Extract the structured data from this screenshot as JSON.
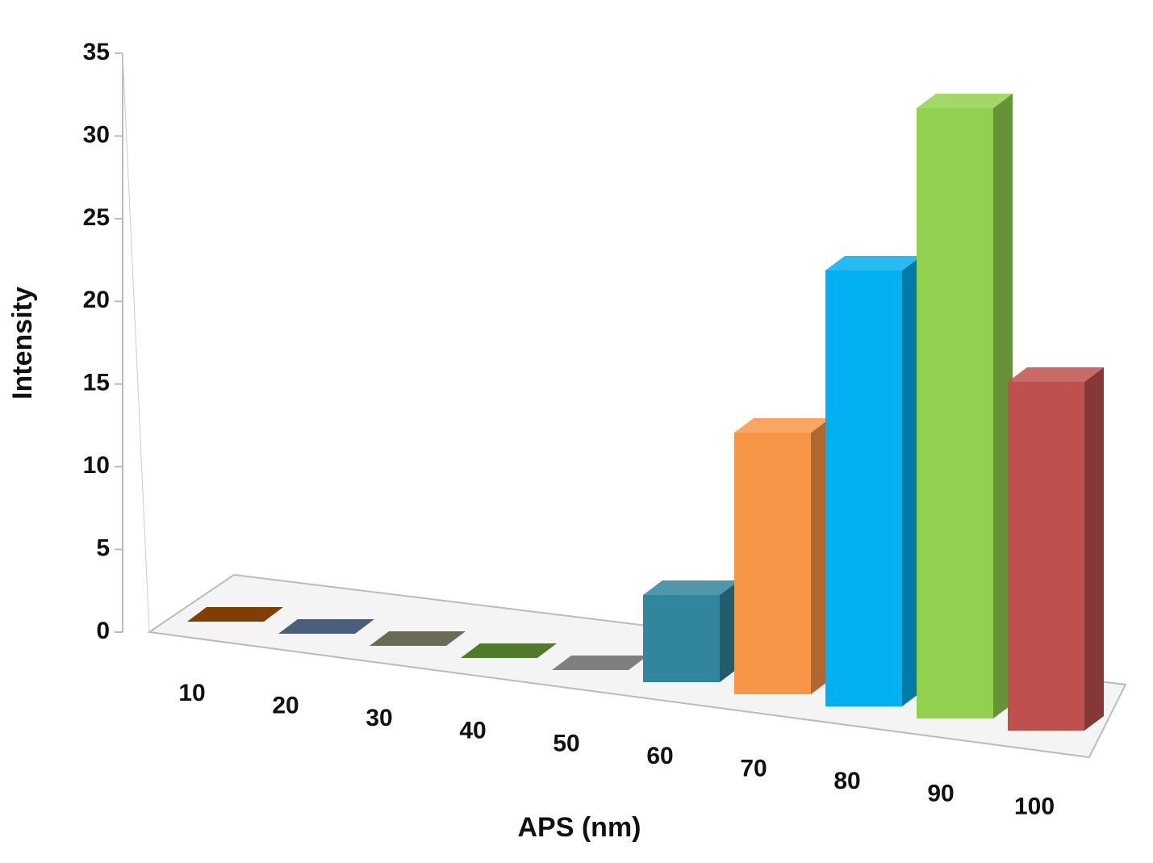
{
  "chart_data": {
    "type": "bar3d",
    "x_label": "APS (nm)",
    "y_label": "Intensity",
    "categories": [
      "10",
      "20",
      "30",
      "40",
      "50",
      "60",
      "70",
      "80",
      "90",
      "100"
    ],
    "values": [
      0,
      0,
      0,
      0,
      0,
      5,
      15,
      25,
      35,
      20
    ],
    "colors": [
      "#7f3f00",
      "#4a5f7e",
      "#6b6b55",
      "#4e7a2a",
      "#7f7f7f",
      "#31859c",
      "#f79646",
      "#00b0f0",
      "#92d050",
      "#c0504d"
    ],
    "ylim": [
      0,
      35
    ],
    "yticks": [
      0,
      5,
      10,
      15,
      20,
      25,
      30,
      35
    ]
  }
}
